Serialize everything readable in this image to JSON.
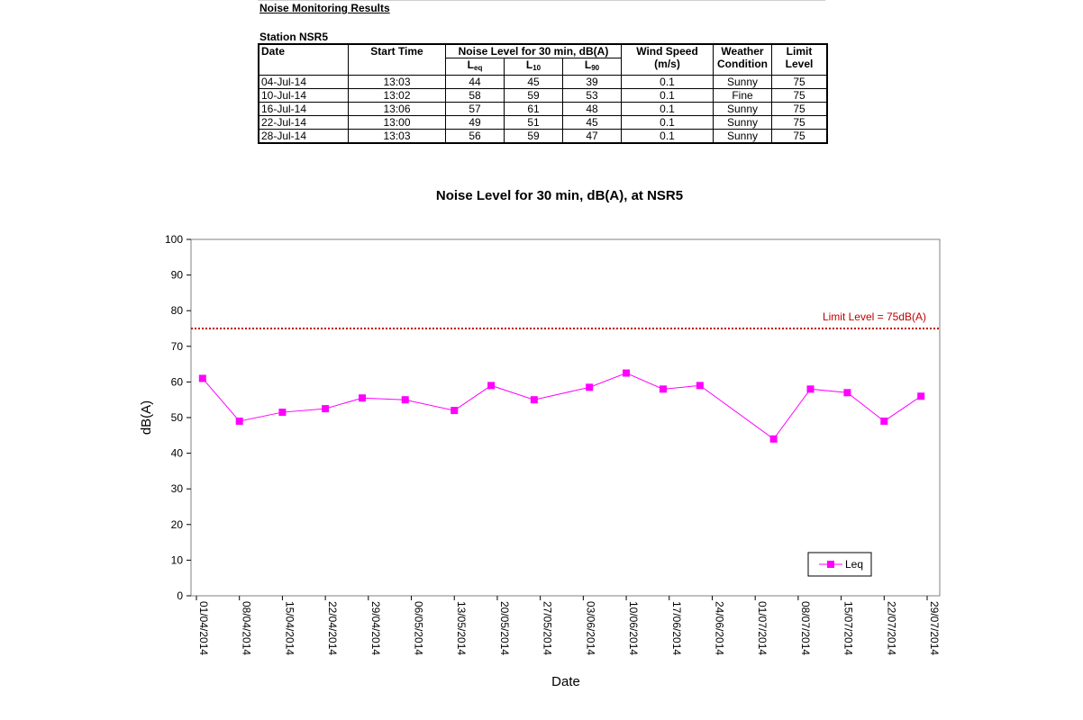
{
  "report": {
    "heading": "Noise Monitoring Results",
    "station": "Station NSR5"
  },
  "table": {
    "headers": {
      "date": "Date",
      "start_time": "Start Time",
      "noise_group": "Noise Level for 30 min, dB(A)",
      "leq_main": "L",
      "leq_sub": "eq",
      "l10_main": "L",
      "l10_sub": "10",
      "l90_main": "L",
      "l90_sub": "90",
      "wind_speed": "Wind Speed",
      "wind_unit": "(m/s)",
      "weather_1": "Weather",
      "weather_2": "Condition",
      "limit_1": "Limit",
      "limit_2": "Level"
    },
    "rows": [
      {
        "date": "04-Jul-14",
        "time": "13:03",
        "leq": "44",
        "l10": "45",
        "l90": "39",
        "wind": "0.1",
        "weather": "Sunny",
        "limit": "75"
      },
      {
        "date": "10-Jul-14",
        "time": "13:02",
        "leq": "58",
        "l10": "59",
        "l90": "53",
        "wind": "0.1",
        "weather": "Fine",
        "limit": "75"
      },
      {
        "date": "16-Jul-14",
        "time": "13:06",
        "leq": "57",
        "l10": "61",
        "l90": "48",
        "wind": "0.1",
        "weather": "Sunny",
        "limit": "75"
      },
      {
        "date": "22-Jul-14",
        "time": "13:00",
        "leq": "49",
        "l10": "51",
        "l90": "45",
        "wind": "0.1",
        "weather": "Sunny",
        "limit": "75"
      },
      {
        "date": "28-Jul-14",
        "time": "13:03",
        "leq": "56",
        "l10": "59",
        "l90": "47",
        "wind": "0.1",
        "weather": "Sunny",
        "limit": "75"
      }
    ]
  },
  "chart_data": {
    "type": "line",
    "title": "Noise Level for 30 min, dB(A), at NSR5",
    "xlabel": "Date",
    "ylabel": "dB(A)",
    "ylim": [
      0,
      100
    ],
    "yticks": [
      0,
      10,
      20,
      30,
      40,
      50,
      60,
      70,
      80,
      90,
      100
    ],
    "xlim": [
      "2014-04-01",
      "2014-07-29"
    ],
    "xticks": [
      {
        "date": "2014-04-01",
        "label": "01/04/2014"
      },
      {
        "date": "2014-04-08",
        "label": "08/04/2014"
      },
      {
        "date": "2014-04-15",
        "label": "15/04/2014"
      },
      {
        "date": "2014-04-22",
        "label": "22/04/2014"
      },
      {
        "date": "2014-04-29",
        "label": "29/04/2014"
      },
      {
        "date": "2014-05-06",
        "label": "06/05/2014"
      },
      {
        "date": "2014-05-13",
        "label": "13/05/2014"
      },
      {
        "date": "2014-05-20",
        "label": "20/05/2014"
      },
      {
        "date": "2014-05-27",
        "label": "27/05/2014"
      },
      {
        "date": "2014-06-03",
        "label": "03/06/2014"
      },
      {
        "date": "2014-06-10",
        "label": "10/06/2014"
      },
      {
        "date": "2014-06-17",
        "label": "17/06/2014"
      },
      {
        "date": "2014-06-24",
        "label": "24/06/2014"
      },
      {
        "date": "2014-07-01",
        "label": "01/07/2014"
      },
      {
        "date": "2014-07-08",
        "label": "08/07/2014"
      },
      {
        "date": "2014-07-15",
        "label": "15/07/2014"
      },
      {
        "date": "2014-07-22",
        "label": "22/07/2014"
      },
      {
        "date": "2014-07-29",
        "label": "29/07/2014"
      }
    ],
    "grid": false,
    "legend_position": "bottom-right",
    "series": [
      {
        "name": "Leq",
        "color": "#ff00ff",
        "marker": "square",
        "x": [
          "2014-04-02",
          "2014-04-08",
          "2014-04-15",
          "2014-04-22",
          "2014-04-28",
          "2014-05-05",
          "2014-05-13",
          "2014-05-19",
          "2014-05-26",
          "2014-06-04",
          "2014-06-10",
          "2014-06-16",
          "2014-06-22",
          "2014-07-04",
          "2014-07-10",
          "2014-07-16",
          "2014-07-22",
          "2014-07-28"
        ],
        "y": [
          61,
          49,
          51.5,
          52.5,
          55.5,
          55,
          52,
          59,
          55,
          58.5,
          62.5,
          58,
          59,
          44,
          58,
          57,
          49,
          56
        ]
      }
    ],
    "reference_line": {
      "value": 75,
      "label": "Limit Level  = 75dB(A)",
      "color": "#c00000",
      "style": "dotted"
    }
  }
}
